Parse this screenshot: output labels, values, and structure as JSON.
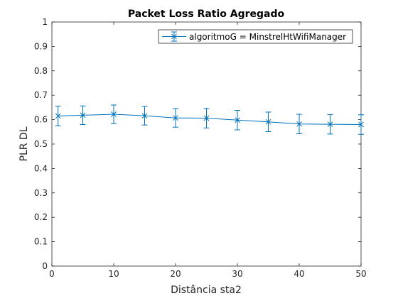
{
  "chart_data": {
    "type": "line",
    "title": "Packet Loss Ratio Agregado",
    "xlabel": "Distância sta2",
    "ylabel": "PLR DL",
    "xlim": [
      0,
      50
    ],
    "ylim": [
      0,
      1
    ],
    "xticks": [
      "0",
      "10",
      "20",
      "30",
      "40",
      "50"
    ],
    "yticks": [
      "0",
      "0.1",
      "0.2",
      "0.3",
      "0.4",
      "0.5",
      "0.6",
      "0.7",
      "0.8",
      "0.9",
      "1"
    ],
    "grid": false,
    "legend": "top-right",
    "series": [
      {
        "name": "algoritmoG = MinstrelHtWifiManager",
        "color": "#0072bd",
        "marker": "x",
        "x": [
          1,
          5,
          10,
          15,
          20,
          25,
          30,
          35,
          40,
          45,
          50
        ],
        "y": [
          0.615,
          0.618,
          0.622,
          0.616,
          0.607,
          0.606,
          0.598,
          0.591,
          0.582,
          0.581,
          0.58
        ],
        "err": [
          0.04,
          0.038,
          0.038,
          0.038,
          0.038,
          0.04,
          0.04,
          0.04,
          0.04,
          0.04,
          0.04
        ]
      }
    ]
  }
}
